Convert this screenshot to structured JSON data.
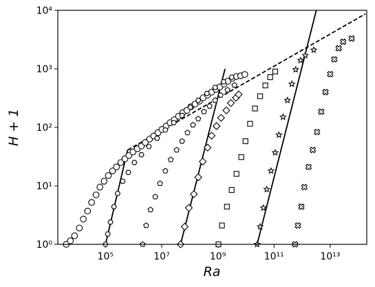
{
  "chart_data": {
    "type": "scatter",
    "x_label": "Ra",
    "y_label": "H + 1",
    "xscale": "log",
    "yscale": "log",
    "xlim": [
      2000.0,
      200000000000000.0
    ],
    "ylim": [
      1,
      10000
    ],
    "xticks": [
      {
        "value": 100000.0,
        "label": "10⁵"
      },
      {
        "value": 10000000.0,
        "label": "10⁷"
      },
      {
        "value": 1000000000.0,
        "label": "10⁹"
      },
      {
        "value": 100000000000.0,
        "label": "10¹¹"
      },
      {
        "value": 10000000000000.0,
        "label": "10¹³"
      }
    ],
    "yticks": [
      {
        "value": 1,
        "label": "10⁰"
      },
      {
        "value": 10,
        "label": "10¹"
      },
      {
        "value": 100,
        "label": "10²"
      },
      {
        "value": 1000,
        "label": "10³"
      },
      {
        "value": 10000,
        "label": "10⁴"
      }
    ],
    "series": [
      {
        "marker": "circle",
        "color": "#000000",
        "x": [
          4000.0,
          5600.0,
          7900.0,
          11700.0,
          16200.0,
          23000.0,
          32000.0,
          46000.0,
          63000.0,
          89000.0,
          126000.0,
          178000.0,
          245000.0,
          350000.0,
          490000.0,
          680000.0,
          950000.0,
          1350000.0,
          1900000.0,
          2600000.0,
          3700000.0,
          5200000.0,
          7400000.0,
          10200000.0,
          14500000.0,
          20000000.0,
          28000000.0,
          40000000.0,
          56000000.0,
          79000000.0,
          110000000.0,
          155000000.0,
          220000000.0,
          300000000.0,
          430000000.0,
          600000000.0,
          850000000.0,
          1170000000.0,
          1660000000.0,
          2300000000.0,
          3300000000.0,
          4600000000.0,
          6500000000.0,
          9100000000.0
        ],
        "values": [
          1.0,
          1.15,
          1.4,
          1.9,
          2.7,
          3.7,
          5.2,
          7.0,
          9.5,
          12,
          15,
          18,
          21,
          25,
          29,
          33,
          38,
          43,
          48,
          55,
          63,
          71,
          81,
          92,
          105,
          120,
          135,
          155,
          178,
          195,
          225,
          250,
          280,
          320,
          355,
          400,
          445,
          490,
          550,
          615,
          690,
          740,
          760,
          800
        ]
      },
      {
        "marker": "hexagon",
        "color": "#000000",
        "x": [
          100000.0,
          120000.0,
          150000.0,
          200000.0,
          270000.0,
          410000.0,
          650000.0,
          1070000.0,
          1900000.0,
          3500000.0,
          6900000.0,
          13500000.0,
          27000000.0,
          53000000.0,
          105000000.0,
          200000000.0,
          410000000.0,
          800000000.0,
          1600000000.0,
          3100000000.0
        ],
        "values": [
          1.0,
          1.5,
          2.4,
          4.4,
          7.4,
          12,
          17,
          25,
          34,
          47,
          65,
          90,
          120,
          160,
          220,
          290,
          380,
          480,
          600,
          720
        ]
      },
      {
        "marker": "pentagon",
        "color": "#000000",
        "x": [
          2100000.0,
          2800000.0,
          4000000.0,
          5900000.0,
          8700000.0,
          13500000.0,
          21000000.0,
          34000000.0,
          53000000.0,
          83000000.0,
          130000000.0,
          200000000.0,
          320000000.0,
          510000000.0,
          800000000.0,
          1260000000.0,
          2200000000.0,
          3900000000.0
        ],
        "values": [
          1.0,
          2.1,
          3.9,
          6.5,
          11,
          18,
          28,
          41,
          58,
          81,
          110,
          140,
          185,
          230,
          290,
          355,
          435,
          525
        ]
      },
      {
        "marker": "diamond",
        "color": "#000000",
        "x": [
          47000000.0,
          66000000.0,
          93000000.0,
          140000000.0,
          200000000.0,
          290000000.0,
          430000000.0,
          600000000.0,
          900000000.0,
          1300000000.0,
          2000000000.0,
          2900000000.0,
          4400000000.0,
          5500000000.0
        ],
        "values": [
          1.0,
          2.0,
          4.2,
          7.2,
          14,
          26,
          45,
          72,
          105,
          145,
          195,
          260,
          320,
          365
        ]
      },
      {
        "marker": "square",
        "color": "#000000",
        "x": [
          1050000000.0,
          1400000000.0,
          2100000000.0,
          3100000000.0,
          4600000000.0,
          6800000000.0,
          9600000000.0,
          14000000000.0,
          21000000000.0,
          32000000000.0,
          49000000000.0,
          73000000000.0,
          110000000000.0
        ],
        "values": [
          1.0,
          2.1,
          4.4,
          8.5,
          16,
          31,
          58,
          115,
          210,
          340,
          520,
          720,
          900
        ]
      },
      {
        "marker": "star",
        "color": "#000000",
        "x": [
          25000000000.0,
          32000000000.0,
          42000000000.0,
          55000000000.0,
          78000000000.0,
          110000000000.0,
          150000000000.0,
          210000000000.0,
          300000000000.0,
          430000000000.0,
          590000000000.0,
          880000000000.0,
          1300000000000.0,
          2600000000000.0
        ],
        "values": [
          1.0,
          2.0,
          4.2,
          8.7,
          18,
          37,
          74,
          150,
          290,
          550,
          970,
          1400,
          1700,
          2100
        ]
      },
      {
        "marker": "x",
        "color": "#000000",
        "x": [
          560000000000.0,
          710000000000.0,
          940000000000.0,
          1200000000000.0,
          1700000000000.0,
          2400000000000.0,
          3400000000000.0,
          4800000000000.0,
          6800000000000.0,
          10000000000000.0,
          14000000000000.0,
          20000000000000.0,
          29000000000000.0,
          58000000000000.0
        ],
        "values": [
          1.0,
          2.1,
          4.4,
          9.5,
          21,
          41,
          83,
          185,
          400,
          810,
          1450,
          2250,
          2900,
          3300
        ]
      }
    ],
    "lines": [
      {
        "style": "solid",
        "color": "#000000",
        "x": [
          100000.0,
          610000.0
        ],
        "values": [
          1,
          41
        ]
      },
      {
        "style": "solid",
        "color": "#000000",
        "x": [
          47000000.0,
          1800000000.0
        ],
        "values": [
          1,
          1000
        ]
      },
      {
        "style": "solid",
        "color": "#000000",
        "x": [
          25000000000.0,
          3200000000000.0
        ],
        "values": [
          1,
          10000
        ]
      },
      {
        "style": "dashed",
        "color": "#000000",
        "x": [
          620000.0,
          180000000000000.0
        ],
        "values": [
          41,
          8700
        ]
      }
    ]
  }
}
